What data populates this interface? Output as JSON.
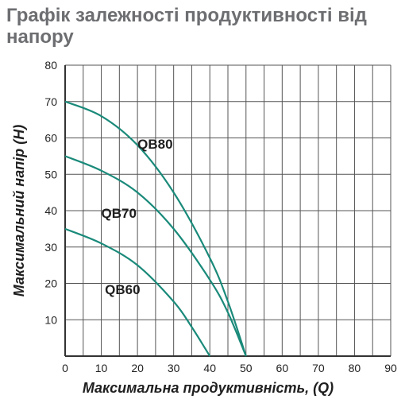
{
  "title": "Графік залежності продуктивності від напору",
  "chart_data": {
    "type": "line",
    "title": "Графік залежності продуктивності від напору",
    "xlabel": "Максимальна продуктивність, (Q)",
    "ylabel": "Максимальний напір (H)",
    "xlim": [
      0,
      90
    ],
    "ylim": [
      0,
      80
    ],
    "x_ticks": [
      "0",
      "10",
      "20",
      "30",
      "40",
      "50",
      "60",
      "70",
      "80",
      "90"
    ],
    "y_ticks": [
      "10",
      "20",
      "30",
      "40",
      "50",
      "60",
      "70",
      "80"
    ],
    "grid": true,
    "line_color": "#1a8a7a",
    "series": [
      {
        "name": "QB80",
        "x": [
          0,
          10,
          20,
          30,
          40,
          45,
          50
        ],
        "y": [
          70,
          66,
          58,
          45,
          27,
          15,
          0
        ]
      },
      {
        "name": "QB70",
        "x": [
          0,
          10,
          20,
          30,
          40,
          45,
          50
        ],
        "y": [
          55,
          51,
          45,
          35,
          21,
          12,
          0
        ]
      },
      {
        "name": "QB60",
        "x": [
          0,
          10,
          20,
          30,
          35,
          40
        ],
        "y": [
          35,
          31,
          25,
          15,
          8,
          0
        ]
      }
    ]
  }
}
